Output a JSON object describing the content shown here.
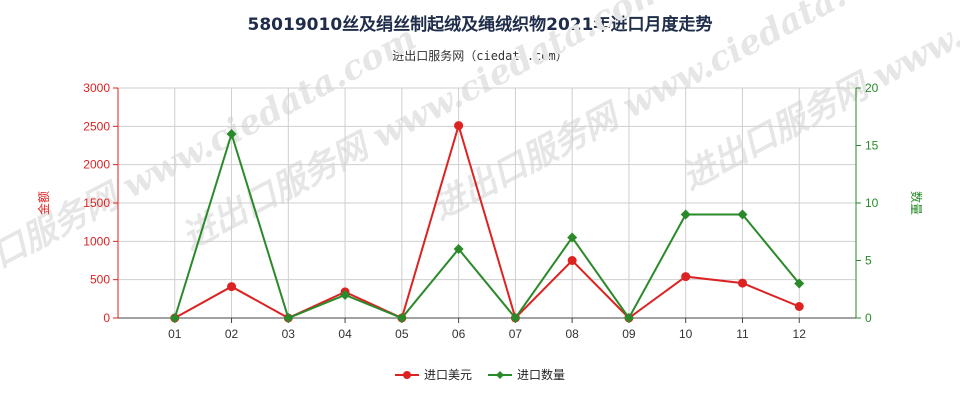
{
  "chart_data": {
    "type": "line",
    "title": "58019010丝及绢丝制起绒及绳绒织物2021年进口月度走势",
    "subtitle": "进出口服务网（ciedata.com）",
    "categories": [
      "01",
      "02",
      "03",
      "04",
      "05",
      "06",
      "07",
      "08",
      "09",
      "10",
      "11",
      "12"
    ],
    "y_left": {
      "label": "金额",
      "range": [
        0,
        3000
      ],
      "ticks": [
        0,
        500,
        1000,
        1500,
        2000,
        2500,
        3000
      ],
      "color": "#dd2222"
    },
    "y_right": {
      "label": "数量",
      "range": [
        0,
        20
      ],
      "ticks": [
        0,
        5,
        10,
        15,
        20
      ],
      "color": "#2a8a2a"
    },
    "series": [
      {
        "name": "进口美元",
        "axis": "left",
        "color": "#dd2222",
        "marker": "circle",
        "values": [
          0,
          410,
          0,
          340,
          0,
          2510,
          0,
          750,
          0,
          540,
          455,
          150
        ]
      },
      {
        "name": "进口数量",
        "axis": "right",
        "color": "#2a8a2a",
        "marker": "diamond",
        "values": [
          0,
          16,
          0,
          2,
          0,
          6,
          0,
          7,
          0,
          9,
          9,
          3
        ]
      }
    ],
    "grid": true,
    "legend_position": "bottom-center"
  },
  "watermark": "进出口服务网 www.ciedata.com"
}
